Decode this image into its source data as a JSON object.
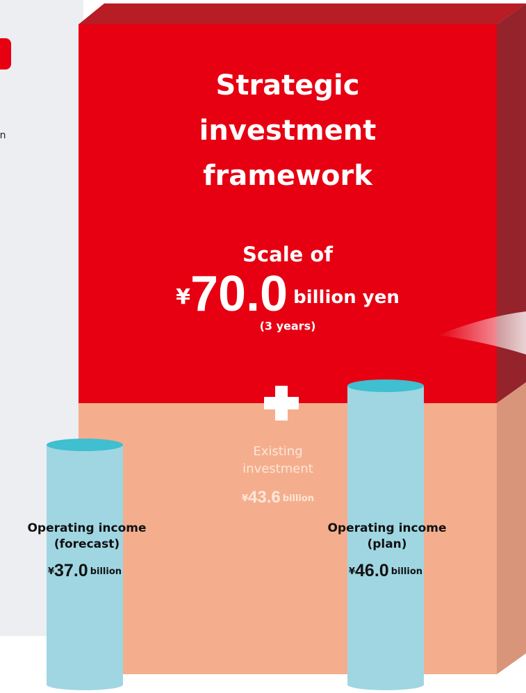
{
  "framework": {
    "title_lines": [
      "Strategic",
      "investment",
      "framework"
    ],
    "scale_label": "Scale of",
    "currency": "¥",
    "amount": "70.0",
    "unit": "billion yen",
    "period": "(3 years)"
  },
  "existing": {
    "label_lines": [
      "Existing",
      "investment"
    ],
    "currency": "¥",
    "amount": "43.6",
    "unit": "billion"
  },
  "left_income": {
    "label_lines": [
      "Operating income",
      "(forecast)"
    ],
    "currency": "¥",
    "amount": "37.0",
    "unit": "billion"
  },
  "right_income": {
    "label_lines": [
      "Operating income",
      "(plan)"
    ],
    "currency": "¥",
    "amount": "46.0",
    "unit": "billion"
  },
  "side_text": "n"
}
